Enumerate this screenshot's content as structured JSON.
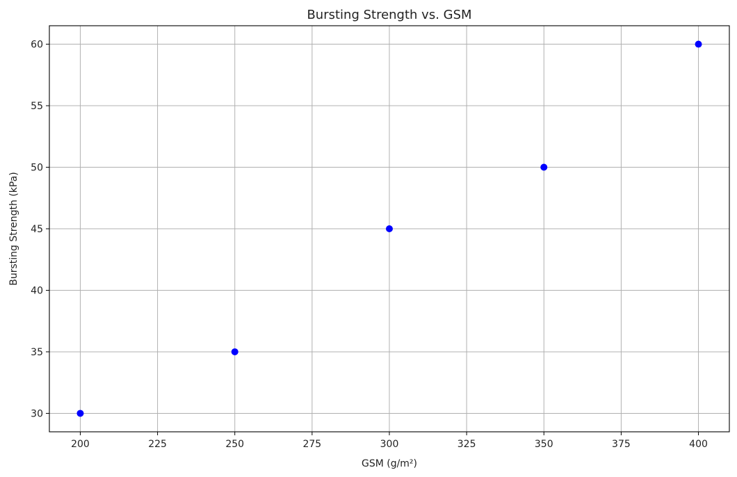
{
  "chart_data": {
    "type": "scatter",
    "title": "Bursting Strength vs. GSM",
    "xlabel": "GSM (g/m²)",
    "ylabel": "Bursting Strength (kPa)",
    "x": [
      200,
      250,
      300,
      350,
      400
    ],
    "y": [
      30,
      35,
      45,
      50,
      60
    ],
    "xlim": [
      190,
      410
    ],
    "ylim": [
      28.5,
      61.5
    ],
    "xticks": [
      200,
      225,
      250,
      275,
      300,
      325,
      350,
      375,
      400
    ],
    "yticks": [
      30,
      35,
      40,
      45,
      50,
      55,
      60
    ],
    "grid": true,
    "marker_color": "#0000ff",
    "grid_color": "#b0b0b0"
  }
}
